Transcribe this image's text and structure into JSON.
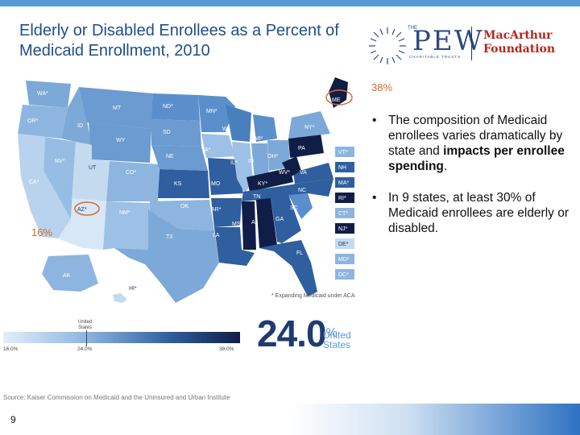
{
  "slide": {
    "title": "Elderly or Disabled Enrollees as a Percent of Medicaid Enrollment, 2010",
    "page_number": "9",
    "source": "Source: Kaiser Commission on Medicaid and the Uninsured and Urban Institute"
  },
  "logos": {
    "pew_the": "THE",
    "pew": "PEW",
    "pew_subtitle": "CHARITABLE TRUSTS",
    "macarthur_line1": "MacArthur",
    "macarthur_line2": "Foundation"
  },
  "bullets": [
    {
      "text": "The composition of Medicaid enrollees varies dramatically by state and ",
      "bold": "impacts per enrollee spending",
      "tail": "."
    },
    {
      "text": "In 9 states, at least 30% of Medicaid enrollees are elderly or disabled."
    }
  ],
  "bullet_marker": "•",
  "callouts": {
    "maine": "38%",
    "arizona": "16%"
  },
  "map": {
    "footnote": "* Expanding Medicaid under ACA",
    "states": {
      "WA": "WA*",
      "OR": "OR*",
      "ID": "ID",
      "MT": "MT",
      "ND": "ND*",
      "MN": "MN*",
      "WY": "WY",
      "SD": "SD",
      "NV": "NV*",
      "UT": "UT",
      "CO": "CO*",
      "NE": "NE",
      "IA": "IA*",
      "WI": "WI",
      "MI": "MI*",
      "IL": "IL*",
      "IN": "IN",
      "OH": "OH*",
      "PA": "PA",
      "NY": "NY*",
      "ME": "ME",
      "CA": "CA*",
      "AZ": "AZ*",
      "NM": "NM*",
      "KS": "KS",
      "MO": "MO",
      "KY": "KY*",
      "WV": "WV*",
      "VA": "VA",
      "NC": "NC",
      "TN": "TN",
      "OK": "OK",
      "AR": "AR*",
      "SC": "SC",
      "TX": "TX",
      "LA": "LA",
      "MS": "MS",
      "AL": "AL",
      "GA": "GA",
      "FL": "FL",
      "AK": "AK",
      "HI": "HI*",
      "VT": "VT*",
      "NH": "NH",
      "MA": "MA*",
      "RI": "RI*",
      "CT": "CT*",
      "NJ": "NJ*",
      "DE": "DE*",
      "MD": "MD*",
      "DC": "DC*"
    }
  },
  "legend": {
    "min": "16.0%",
    "mid": "24.0%",
    "max": "38.0%",
    "us_label_1": "United",
    "us_label_2": "States",
    "big_value": "24.0",
    "big_percent": "%",
    "big_us_1": "United",
    "big_us_2": "States"
  },
  "colors": {
    "title": "#1f4e8c",
    "light": "#c4daef",
    "mid": "#5b8fcc",
    "dark": "#1f3c6e",
    "darkest": "#101e47",
    "callout": "#d86a2a",
    "macarthur": "#b5261e"
  }
}
